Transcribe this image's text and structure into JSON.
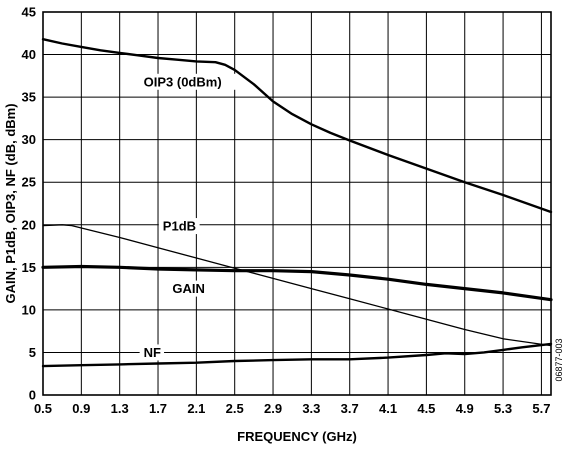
{
  "chart_data": {
    "type": "line",
    "title": "",
    "xlabel": "FREQUENCY (GHz)",
    "ylabel": "GAIN, P1dB, OIP3, NF (dB, dBm)",
    "xlim": [
      0.5,
      5.8
    ],
    "ylim": [
      0,
      45
    ],
    "xticks": [
      "0.5",
      "0.9",
      "1.3",
      "1.7",
      "2.1",
      "2.5",
      "2.9",
      "3.3",
      "3.7",
      "4.1",
      "4.5",
      "4.9",
      "5.3",
      "5.7"
    ],
    "yticks": [
      "0",
      "5",
      "10",
      "15",
      "20",
      "25",
      "30",
      "35",
      "40",
      "45"
    ],
    "grid": true,
    "legend": "none",
    "figure_id": "06877-003",
    "series": [
      {
        "name": "OIP3 (0dBm)",
        "x": [
          0.5,
          0.7,
          0.9,
          1.1,
          1.3,
          1.5,
          1.7,
          1.9,
          2.1,
          2.3,
          2.4,
          2.5,
          2.7,
          2.9,
          3.1,
          3.3,
          3.5,
          3.7,
          4.1,
          4.5,
          4.9,
          5.3,
          5.8
        ],
        "y": [
          41.8,
          41.3,
          40.9,
          40.5,
          40.2,
          39.9,
          39.6,
          39.4,
          39.2,
          39.1,
          38.8,
          38.2,
          36.5,
          34.5,
          33.0,
          31.8,
          30.8,
          29.9,
          28.2,
          26.6,
          25.0,
          23.5,
          21.5
        ],
        "stroke_width": 2.4
      },
      {
        "name": "P1dB",
        "x": [
          0.5,
          0.7,
          0.8,
          1.3,
          1.7,
          2.1,
          2.5,
          2.9,
          3.3,
          3.7,
          4.1,
          4.5,
          4.9,
          5.3,
          5.8
        ],
        "y": [
          19.9,
          20.0,
          19.9,
          18.5,
          17.3,
          16.1,
          14.9,
          13.7,
          12.5,
          11.3,
          10.1,
          8.9,
          7.7,
          6.6,
          5.8
        ],
        "stroke_width": 1.3
      },
      {
        "name": "GAIN",
        "x": [
          0.5,
          0.9,
          1.3,
          1.7,
          2.1,
          2.5,
          2.9,
          3.3,
          3.7,
          4.1,
          4.5,
          4.9,
          5.3,
          5.8
        ],
        "y": [
          15.0,
          15.1,
          15.0,
          14.8,
          14.7,
          14.6,
          14.6,
          14.5,
          14.1,
          13.6,
          13.0,
          12.5,
          12.0,
          11.2
        ],
        "stroke_width": 3.2
      },
      {
        "name": "NF",
        "x": [
          0.5,
          0.9,
          1.3,
          1.7,
          2.1,
          2.5,
          2.9,
          3.3,
          3.7,
          4.1,
          4.5,
          4.7,
          4.9,
          5.1,
          5.3,
          5.5,
          5.8
        ],
        "y": [
          3.4,
          3.5,
          3.6,
          3.7,
          3.8,
          4.0,
          4.1,
          4.2,
          4.2,
          4.4,
          4.7,
          4.9,
          4.8,
          5.0,
          5.3,
          5.6,
          6.0
        ],
        "stroke_width": 2.4
      }
    ],
    "labels": [
      {
        "series": "OIP3 (0dBm)",
        "text": "OIP3 (0dBm)",
        "x": 1.55,
        "y": 36.8
      },
      {
        "series": "P1dB",
        "text": "P1dB",
        "x": 1.75,
        "y": 19.85
      },
      {
        "series": "GAIN",
        "text": "GAIN",
        "x": 1.85,
        "y": 12.5
      },
      {
        "series": "NF",
        "text": "NF",
        "x": 1.55,
        "y": 5.0
      }
    ]
  }
}
